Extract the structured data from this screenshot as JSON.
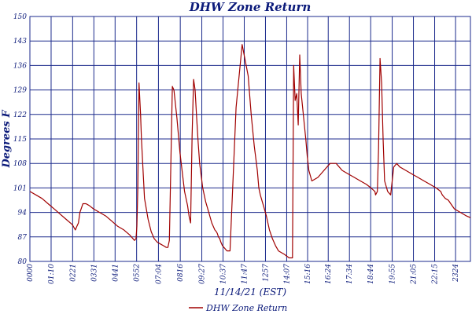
{
  "chart_data": {
    "type": "line",
    "title": "DHW Zone Return",
    "xlabel": "11/14/21 (EST)",
    "ylabel": "Degrees F",
    "ylim": [
      80,
      150
    ],
    "yticks": [
      80,
      87,
      94,
      101,
      108,
      115,
      122,
      129,
      136,
      143,
      150
    ],
    "ytick_labels": [
      "80",
      "87",
      "94",
      "101",
      "108",
      "115",
      "122",
      "129",
      "136",
      "143",
      "150"
    ],
    "xlim_minutes": [
      0,
      1453
    ],
    "xtick_labels": [
      "0000",
      "01:10",
      "0221",
      "0331",
      "0441",
      "0552",
      "07:04",
      "0816",
      "09:27",
      "10:37",
      "11:47",
      "1257",
      "14:07",
      "15:16",
      "16:24",
      "17:34",
      "18:44",
      "19:55",
      "21:05",
      "22:15",
      "2324"
    ],
    "xtick_minutes": [
      0,
      70,
      141,
      211,
      281,
      352,
      424,
      496,
      567,
      637,
      707,
      777,
      847,
      916,
      984,
      1054,
      1124,
      1195,
      1265,
      1335,
      1404
    ],
    "grid": true,
    "legend_position": "bottom-center",
    "series": [
      {
        "name": "DHW Zone Return",
        "color": "#a00000",
        "x_minutes": [
          0,
          20,
          40,
          60,
          80,
          100,
          120,
          140,
          150,
          155,
          160,
          165,
          175,
          185,
          195,
          210,
          230,
          250,
          270,
          290,
          310,
          330,
          345,
          350,
          353,
          356,
          360,
          365,
          368,
          372,
          378,
          390,
          400,
          410,
          420,
          430,
          440,
          450,
          455,
          460,
          470,
          475,
          485,
          495,
          510,
          520,
          525,
          530,
          535,
          540,
          545,
          550,
          555,
          560,
          570,
          580,
          590,
          600,
          610,
          615,
          618,
          622,
          626,
          630,
          635,
          640,
          650,
          660,
          680,
          700,
          720,
          730,
          740,
          750,
          755,
          760,
          770,
          780,
          790,
          800,
          810,
          820,
          840,
          855,
          857,
          860,
          866,
          870,
          875,
          880,
          885,
          890,
          895,
          910,
          915,
          920,
          930,
          950,
          970,
          990,
          1010,
          1030,
          1050,
          1070,
          1090,
          1110,
          1125,
          1138,
          1140,
          1146,
          1150,
          1155,
          1160,
          1165,
          1170,
          1180,
          1190,
          1200,
          1210,
          1220,
          1240,
          1260,
          1280,
          1300,
          1320,
          1340,
          1355,
          1360,
          1370,
          1380,
          1400,
          1420,
          1440,
          1453
        ],
        "values": [
          100,
          99,
          98,
          96.5,
          95,
          93.5,
          92,
          90.5,
          89,
          90,
          91,
          94,
          96.5,
          96.5,
          96,
          95,
          94,
          93,
          91.5,
          90,
          89,
          87.5,
          86,
          86.5,
          90,
          101,
          131,
          122,
          115,
          108,
          98,
          92,
          88.5,
          86.5,
          85.5,
          85,
          84.5,
          84,
          84,
          86,
          130,
          129,
          121,
          111,
          100,
          96,
          93,
          91,
          116,
          132,
          129,
          121,
          114,
          108,
          101,
          97,
          94,
          91,
          89,
          88.5,
          88,
          87,
          86.5,
          85.5,
          84.5,
          84,
          83,
          83,
          124,
          142,
          133,
          122,
          113,
          106,
          101,
          99,
          96,
          93,
          89,
          86.5,
          84.5,
          83,
          82,
          81,
          81,
          81,
          81,
          136,
          126,
          128,
          119,
          139,
          128,
          115,
          110,
          106,
          103,
          104,
          106,
          108,
          108,
          106,
          105,
          104,
          103,
          102,
          101,
          100,
          99,
          100,
          112,
          138,
          131,
          115,
          103,
          100,
          99,
          107,
          108,
          107,
          106,
          105,
          104,
          103,
          102,
          101,
          100,
          99,
          98,
          97.5,
          95,
          94,
          93,
          92.5
        ]
      }
    ]
  }
}
